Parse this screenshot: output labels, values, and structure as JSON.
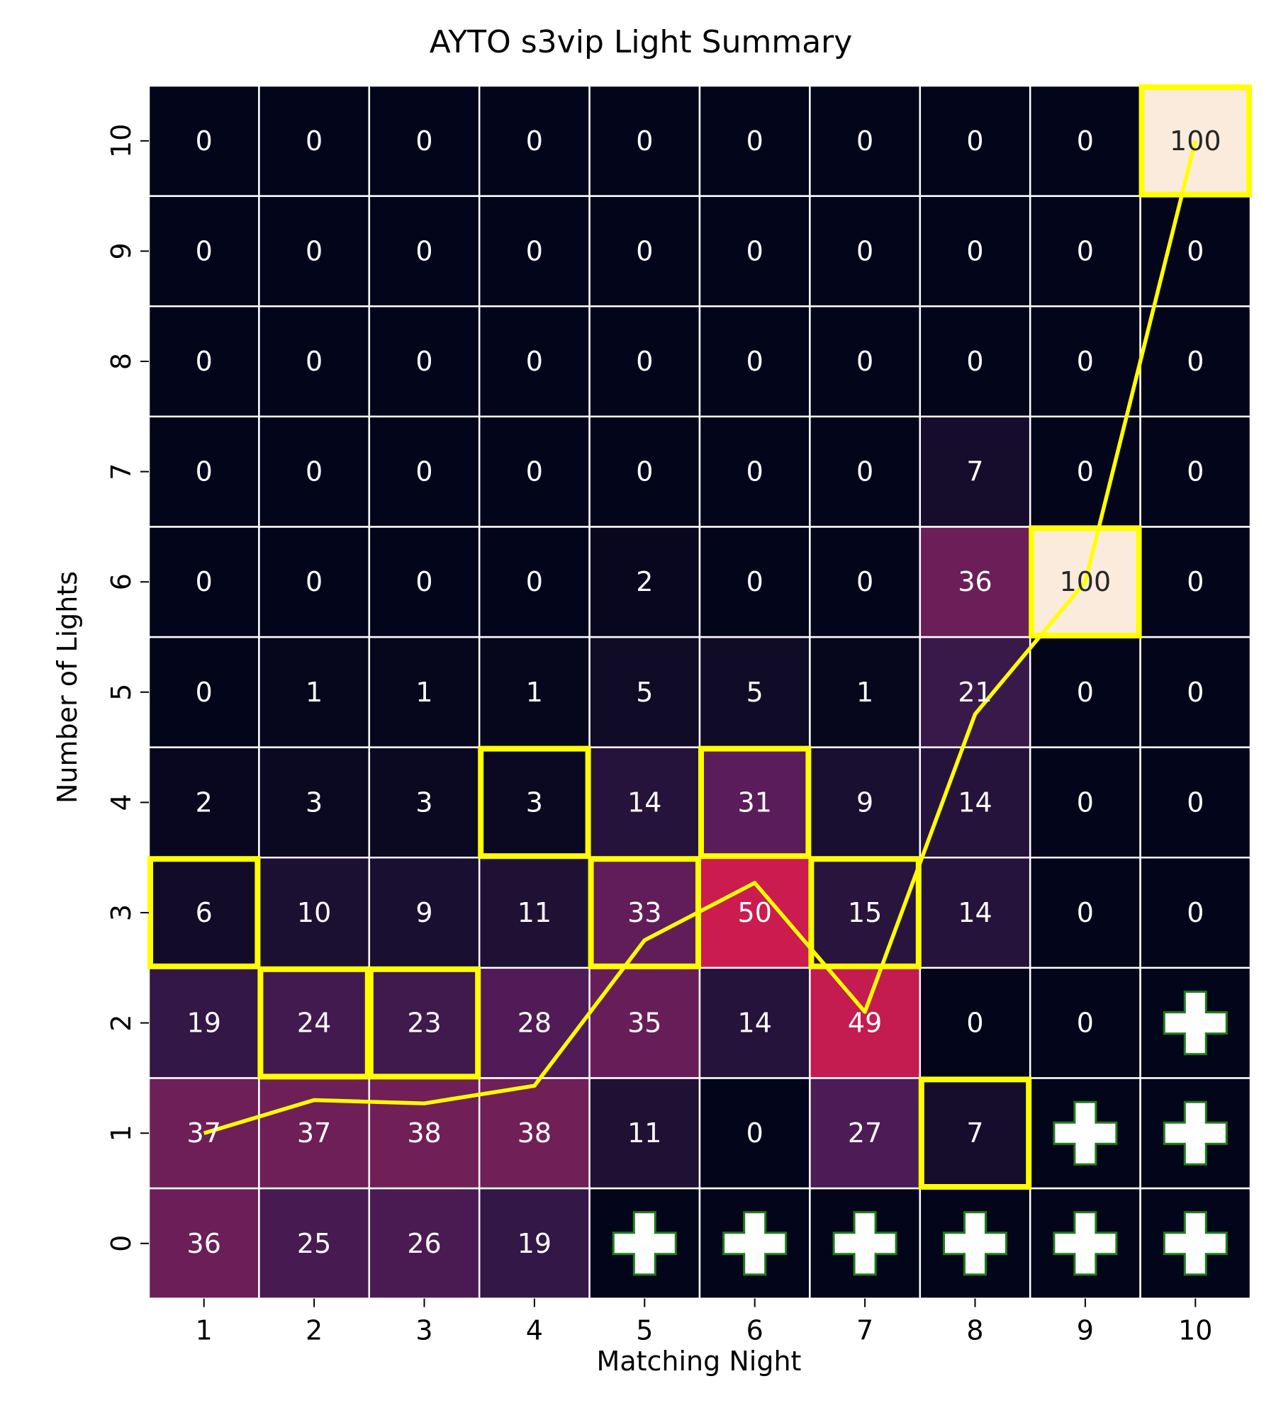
{
  "chart_data": {
    "type": "heatmap",
    "title": "AYTO s3vip Light Summary",
    "xlabel": "Matching Night",
    "ylabel": "Number of Lights",
    "x_categories": [
      "1",
      "2",
      "3",
      "4",
      "5",
      "6",
      "7",
      "8",
      "9",
      "10"
    ],
    "y_categories": [
      "0",
      "1",
      "2",
      "3",
      "4",
      "5",
      "6",
      "7",
      "8",
      "9",
      "10"
    ],
    "values": [
      [
        36,
        37,
        19,
        6,
        2,
        0,
        0,
        0,
        0,
        0,
        0
      ],
      [
        25,
        37,
        24,
        10,
        3,
        1,
        0,
        0,
        0,
        0,
        0
      ],
      [
        26,
        38,
        23,
        9,
        3,
        1,
        0,
        0,
        0,
        0,
        0
      ],
      [
        19,
        38,
        28,
        11,
        3,
        1,
        0,
        0,
        0,
        0,
        0
      ],
      [
        null,
        11,
        35,
        33,
        14,
        5,
        2,
        0,
        0,
        0,
        0
      ],
      [
        null,
        0,
        14,
        50,
        31,
        5,
        0,
        0,
        0,
        0,
        0
      ],
      [
        null,
        27,
        49,
        15,
        9,
        1,
        0,
        0,
        0,
        0,
        0
      ],
      [
        null,
        7,
        0,
        14,
        14,
        21,
        36,
        7,
        0,
        0,
        0
      ],
      [
        null,
        null,
        0,
        0,
        0,
        0,
        100,
        0,
        0,
        0,
        0
      ],
      [
        null,
        null,
        null,
        0,
        0,
        0,
        0,
        0,
        0,
        0,
        100
      ]
    ],
    "highlighted_lights": [
      3,
      2,
      2,
      4,
      3,
      4,
      3,
      1,
      6,
      10
    ],
    "expected_lights": [
      1.0,
      1.3,
      1.27,
      1.43,
      2.75,
      3.27,
      2.1,
      4.8,
      6.0,
      10.0
    ],
    "marker": "plus-icon",
    "colors": {
      "highlight": "#ffff00",
      "line": "#ffff00",
      "plus_fill": "#ffffff",
      "plus_stroke": "#1e7d1e",
      "grid": "#ffffff"
    },
    "colormap": "rocket",
    "vmin": 0,
    "vmax": 100,
    "colorbar": false
  }
}
